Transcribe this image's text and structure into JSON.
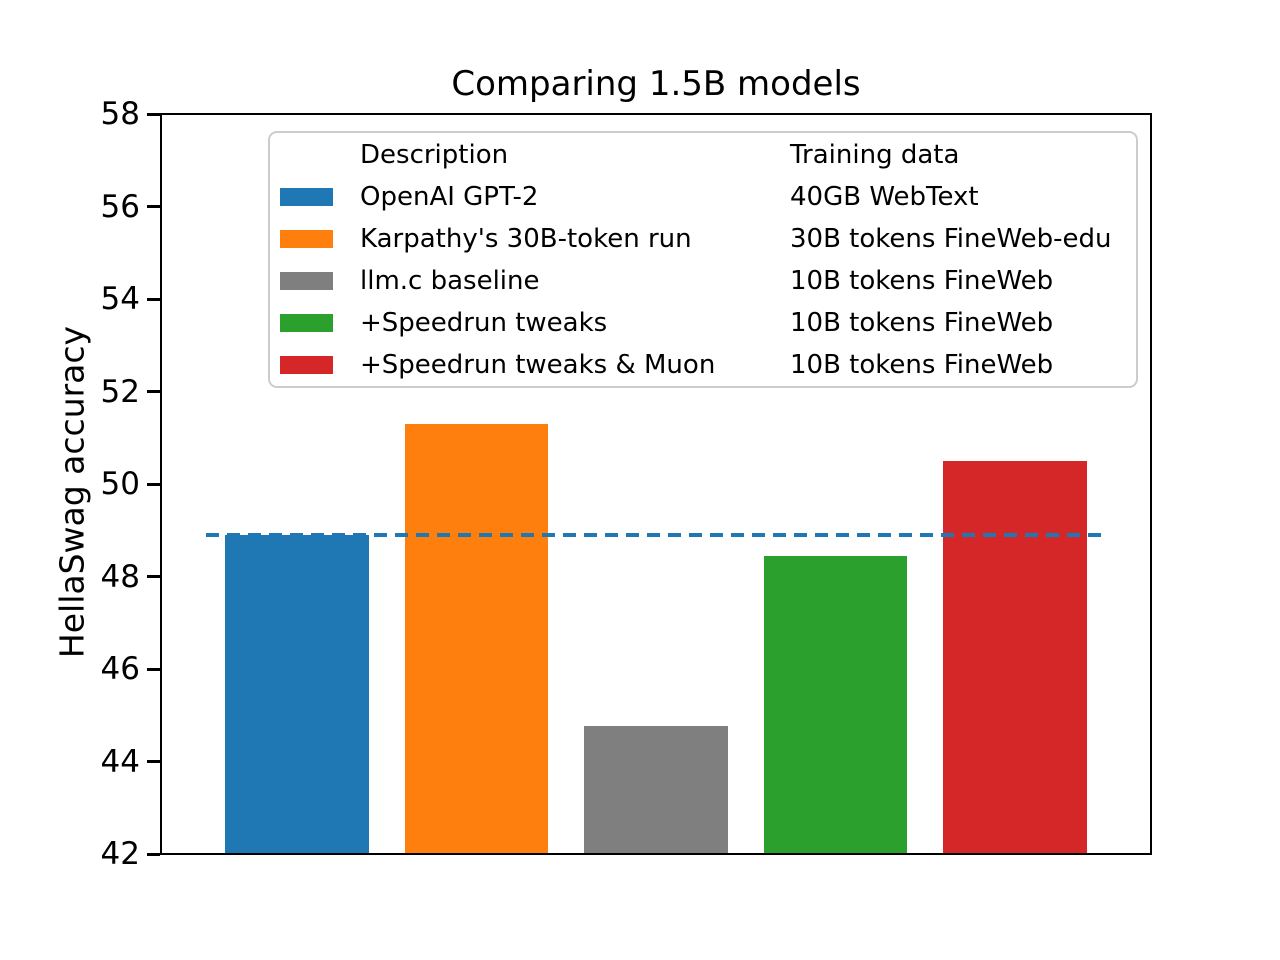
{
  "legend": {
    "header": {
      "description": "Description",
      "training": "Training data"
    },
    "rows": [
      {
        "label": "OpenAI GPT-2",
        "training": "40GB WebText",
        "color": "#1f77b4"
      },
      {
        "label": "Karpathy's 30B-token run",
        "training": "30B tokens FineWeb-edu",
        "color": "#ff7f0e"
      },
      {
        "label": "llm.c baseline",
        "training": "10B tokens FineWeb",
        "color": "#7f7f7f"
      },
      {
        "label": "+Speedrun tweaks",
        "training": "10B tokens FineWeb",
        "color": "#2ca02c"
      },
      {
        "label": "+Speedrun tweaks & Muon",
        "training": "10B tokens FineWeb",
        "color": "#d62728"
      }
    ]
  },
  "chart_data": {
    "type": "bar",
    "title": "Comparing 1.5B models",
    "xlabel": "",
    "ylabel": "HellaSwag accuracy",
    "ylim": [
      42,
      58
    ],
    "yticks": [
      42,
      44,
      46,
      48,
      50,
      52,
      54,
      56,
      58
    ],
    "xlim": [
      -0.75,
      4.75
    ],
    "bar_width": 0.8,
    "grid": false,
    "legend_position": "upper center",
    "categories": [
      "OpenAI GPT-2",
      "Karpathy's 30B-token run",
      "llm.c baseline",
      "+Speedrun tweaks",
      "+Speedrun tweaks & Muon"
    ],
    "values": [
      48.9,
      51.3,
      44.75,
      48.45,
      50.5
    ],
    "colors": [
      "#1f77b4",
      "#ff7f0e",
      "#7f7f7f",
      "#2ca02c",
      "#d62728"
    ],
    "reference_line": {
      "value": 48.9,
      "style": "dashed",
      "color": "#1f77b4",
      "xspan": [
        0.045,
        0.955
      ]
    }
  }
}
